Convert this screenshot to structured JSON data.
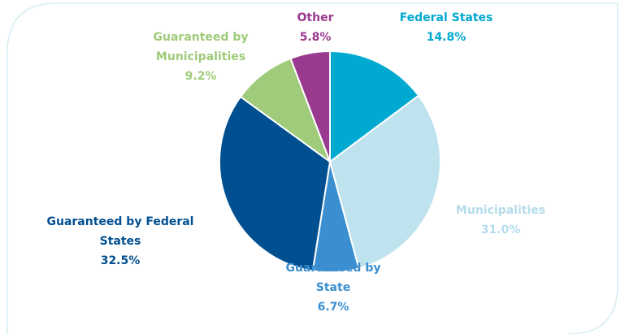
{
  "chart_data": {
    "type": "pie",
    "categories": [
      "Federal States",
      "Municipalities",
      "Guaranteed by State",
      "Guaranteed by Federal States",
      "Guaranteed by Municipalities",
      "Other"
    ],
    "values": [
      14.8,
      31.0,
      6.7,
      32.5,
      9.2,
      5.8
    ],
    "value_labels": [
      "14.8%",
      "31.0%",
      "6.7%",
      "32.5%",
      "9.2%",
      "5.8%"
    ],
    "colors": [
      "#00a9d0",
      "#bfe3ee",
      "#3b8fd0",
      "#004f91",
      "#9fcb7a",
      "#9a3a8f"
    ],
    "label_colors": [
      "#00a9d0",
      "#b5dceb",
      "#3b8fd0",
      "#004f91",
      "#9fcb7a",
      "#9a3a8f"
    ]
  }
}
